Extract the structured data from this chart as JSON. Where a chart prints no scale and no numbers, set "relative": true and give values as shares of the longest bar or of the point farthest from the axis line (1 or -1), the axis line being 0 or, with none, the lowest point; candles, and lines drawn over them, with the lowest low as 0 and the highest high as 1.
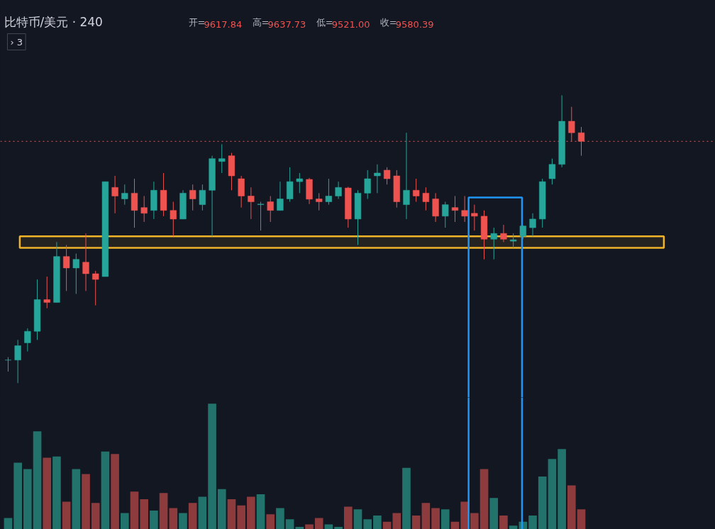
{
  "chart_data": [
    {
      "type": "candlestick",
      "title": "比特币/美元 · 240",
      "subtitle": "开=9617.84 高=9637.73 低=9521.00 收=9580.39",
      "annotations": [
        "› 3"
      ],
      "relative": true,
      "grid": false,
      "categories": [
        null,
        null,
        null,
        null,
        null,
        null,
        null,
        null,
        null,
        null,
        null,
        null,
        null,
        null,
        null,
        null,
        null,
        null,
        null,
        null,
        null,
        null,
        null,
        null,
        null,
        null,
        null,
        null,
        null,
        null,
        null,
        null,
        null,
        null,
        null,
        null,
        null,
        null,
        null,
        null,
        null,
        null,
        null,
        null,
        null,
        null,
        null,
        null,
        null,
        null,
        null,
        null,
        null,
        null,
        null,
        null,
        null,
        null,
        null,
        null
      ],
      "ohlc": [
        [
          0.08,
          0.09,
          0.04,
          0.08
        ],
        [
          0.08,
          0.15,
          0,
          0.13
        ],
        [
          0.14,
          0.19,
          0.11,
          0.18
        ],
        [
          0.18,
          0.36,
          0.15,
          0.29
        ],
        [
          0.29,
          0.37,
          0.26,
          0.28
        ],
        [
          0.28,
          0.49,
          0.28,
          0.44
        ],
        [
          0.44,
          0.48,
          0.32,
          0.4
        ],
        [
          0.4,
          0.45,
          0.31,
          0.43
        ],
        [
          0.42,
          0.52,
          0.32,
          0.38
        ],
        [
          0.38,
          0.39,
          0.27,
          0.36
        ],
        [
          0.37,
          0.7,
          0.37,
          0.7
        ],
        [
          0.68,
          0.72,
          0.59,
          0.65
        ],
        [
          0.64,
          0.69,
          0.62,
          0.66
        ],
        [
          0.66,
          0.71,
          0.54,
          0.6
        ],
        [
          0.61,
          0.65,
          0.56,
          0.59
        ],
        [
          0.6,
          0.7,
          0.57,
          0.67
        ],
        [
          0.67,
          0.73,
          0.58,
          0.6
        ],
        [
          0.6,
          0.63,
          0.51,
          0.57
        ],
        [
          0.57,
          0.67,
          0.57,
          0.66
        ],
        [
          0.67,
          0.69,
          0.6,
          0.64
        ],
        [
          0.62,
          0.69,
          0.6,
          0.67
        ],
        [
          0.67,
          0.79,
          0.51,
          0.78
        ],
        [
          0.77,
          0.83,
          0.73,
          0.78
        ],
        [
          0.79,
          0.8,
          0.67,
          0.72
        ],
        [
          0.71,
          0.72,
          0.61,
          0.65
        ],
        [
          0.65,
          0.68,
          0.57,
          0.63
        ],
        [
          0.62,
          0.63,
          0.53,
          0.622
        ],
        [
          0.63,
          0.65,
          0.56,
          0.6
        ],
        [
          0.6,
          0.7,
          0.6,
          0.64
        ],
        [
          0.64,
          0.75,
          0.63,
          0.7
        ],
        [
          0.7,
          0.73,
          0.66,
          0.71
        ],
        [
          0.708,
          0.713,
          0.622,
          0.639
        ],
        [
          0.64,
          0.66,
          0.6,
          0.63
        ],
        [
          0.63,
          0.71,
          0.62,
          0.65
        ],
        [
          0.65,
          0.7,
          0.64,
          0.68
        ],
        [
          0.678,
          0.682,
          0.54,
          0.57
        ],
        [
          0.57,
          0.67,
          0.48,
          0.66
        ],
        [
          0.66,
          0.74,
          0.64,
          0.71
        ],
        [
          0.72,
          0.76,
          0.66,
          0.73
        ],
        [
          0.74,
          0.75,
          0.69,
          0.71
        ],
        [
          0.72,
          0.74,
          0.61,
          0.63
        ],
        [
          0.62,
          0.87,
          0.57,
          0.67
        ],
        [
          0.67,
          0.71,
          0.63,
          0.65
        ],
        [
          0.66,
          0.68,
          0.6,
          0.63
        ],
        [
          0.64,
          0.66,
          0.56,
          0.58
        ],
        [
          0.58,
          0.63,
          0.54,
          0.62
        ],
        [
          0.61,
          0.65,
          0.56,
          0.6
        ],
        [
          0.6,
          0.65,
          0.56,
          0.58
        ],
        [
          0.59,
          0.62,
          0.53,
          0.58
        ],
        [
          0.58,
          0.6,
          0.43,
          0.5
        ],
        [
          0.5,
          0.54,
          0.43,
          0.52
        ],
        [
          0.52,
          0.55,
          0.49,
          0.5
        ],
        [
          0.493,
          0.52,
          0.47,
          0.498
        ],
        [
          0.51,
          0.548,
          0.5,
          0.546
        ],
        [
          0.54,
          0.59,
          0.51,
          0.57
        ],
        [
          0.57,
          0.71,
          0.54,
          0.7
        ],
        [
          0.71,
          0.78,
          0.69,
          0.76
        ],
        [
          0.76,
          1,
          0.75,
          0.91
        ],
        [
          0.91,
          0.96,
          0.84,
          0.87
        ],
        [
          0.87,
          0.89,
          0.79,
          0.84
        ]
      ],
      "colors": [
        "#26a69a",
        "#26a69a",
        "#26a69a",
        "#26a69a",
        "#ef5350",
        "#26a69a",
        "#ef5350",
        "#26a69a",
        "#ef5350",
        "#ef5350",
        "#26a69a",
        "#ef5350",
        "#26a69a",
        "#ef5350",
        "#ef5350",
        "#26a69a",
        "#ef5350",
        "#ef5350",
        "#26a69a",
        "#ef5350",
        "#26a69a",
        "#26a69a",
        "#26a69a",
        "#ef5350",
        "#ef5350",
        "#ef5350",
        "#26a69a",
        "#ef5350",
        "#26a69a",
        "#26a69a",
        "#26a69a",
        "#ef5350",
        "#ef5350",
        "#26a69a",
        "#26a69a",
        "#ef5350",
        "#26a69a",
        "#26a69a",
        "#26a69a",
        "#ef5350",
        "#ef5350",
        "#26a69a",
        "#ef5350",
        "#ef5350",
        "#ef5350",
        "#26a69a",
        "#ef5350",
        "#ef5350",
        "#ef5350",
        "#ef5350",
        "#26a69a",
        "#ef5350",
        "#26a69a",
        "#26a69a",
        "#26a69a",
        "#26a69a",
        "#26a69a",
        "#26a69a",
        "#ef5350",
        "#ef5350"
      ],
      "ref_lines": [
        {
          "axis": "y",
          "value": 0.84,
          "color": "#ef5350",
          "line_style": "dotted"
        }
      ],
      "bands": [
        {
          "axis": "y",
          "from": 0.47,
          "to": 0.51,
          "color": "#f0b429"
        }
      ]
    },
    {
      "type": "bar",
      "relative": true,
      "categories": [
        null,
        null,
        null,
        null,
        null,
        null,
        null,
        null,
        null,
        null,
        null,
        null,
        null,
        null,
        null,
        null,
        null,
        null,
        null,
        null,
        null,
        null,
        null,
        null,
        null,
        null,
        null,
        null,
        null,
        null,
        null,
        null,
        null,
        null,
        null,
        null,
        null,
        null,
        null,
        null,
        null,
        null,
        null,
        null,
        null,
        null,
        null,
        null,
        null,
        null,
        null,
        null,
        null,
        null,
        null,
        null,
        null,
        null,
        null,
        null
      ],
      "values": [
        0.09,
        0.53,
        0.48,
        0.78,
        0.57,
        0.58,
        0.22,
        0.48,
        0.44,
        0.21,
        0.62,
        0.6,
        0.13,
        0.3,
        0.24,
        0.15,
        0.29,
        0.17,
        0.13,
        0.21,
        0.26,
        1,
        0.32,
        0.24,
        0.19,
        0.26,
        0.28,
        0.12,
        0.17,
        0.08,
        0.02,
        0.04,
        0.09,
        0.04,
        0.02,
        0.18,
        0.16,
        0.08,
        0.11,
        0.06,
        0.13,
        0.49,
        0.11,
        0.21,
        0.17,
        0.16,
        0.06,
        0.22,
        0.13,
        0.48,
        0.25,
        0.11,
        0.03,
        0.06,
        0.11,
        0.42,
        0.56,
        0.64,
        0.35,
        0.16
      ],
      "colors": [
        "#22736b",
        "#22736b",
        "#22736b",
        "#22736b",
        "#8e3b3e",
        "#22736b",
        "#8e3b3e",
        "#22736b",
        "#8e3b3e",
        "#8e3b3e",
        "#22736b",
        "#8e3b3e",
        "#22736b",
        "#8e3b3e",
        "#8e3b3e",
        "#22736b",
        "#8e3b3e",
        "#8e3b3e",
        "#22736b",
        "#8e3b3e",
        "#22736b",
        "#22736b",
        "#22736b",
        "#8e3b3e",
        "#8e3b3e",
        "#8e3b3e",
        "#22736b",
        "#8e3b3e",
        "#22736b",
        "#22736b",
        "#22736b",
        "#8e3b3e",
        "#8e3b3e",
        "#22736b",
        "#22736b",
        "#8e3b3e",
        "#22736b",
        "#22736b",
        "#22736b",
        "#8e3b3e",
        "#8e3b3e",
        "#22736b",
        "#8e3b3e",
        "#8e3b3e",
        "#8e3b3e",
        "#22736b",
        "#8e3b3e",
        "#8e3b3e",
        "#8e3b3e",
        "#8e3b3e",
        "#22736b",
        "#8e3b3e",
        "#22736b",
        "#22736b",
        "#22736b",
        "#22736b",
        "#22736b",
        "#22736b",
        "#8e3b3e",
        "#8e3b3e"
      ]
    }
  ]
}
